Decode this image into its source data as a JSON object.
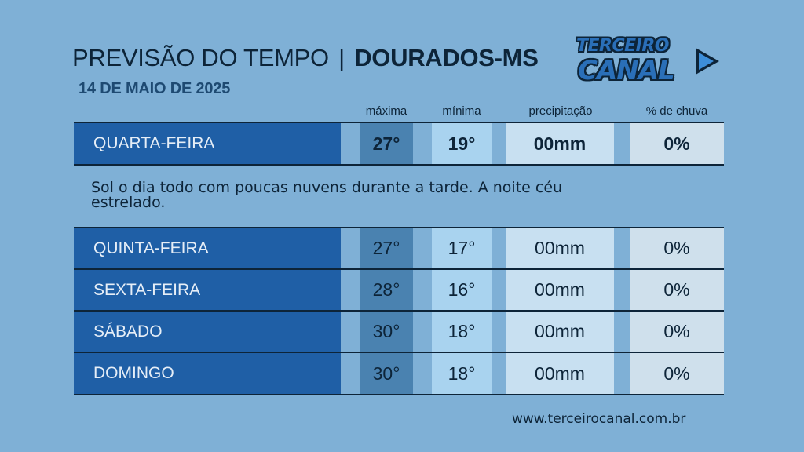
{
  "header": {
    "title_prefix": "PREVISÃO DO TEMPO",
    "separator": "|",
    "city": "DOURADOS-MS",
    "date": "14 DE MAIO DE 2025"
  },
  "logo": {
    "line1": "TERCEIRO",
    "line2": "CANAL",
    "icon": "play-icon"
  },
  "columns": {
    "max": "máxima",
    "min": "mínima",
    "precip": "precipitação",
    "rain_chance": "% de chuva"
  },
  "today": {
    "day": "QUARTA-FEIRA",
    "max": "27°",
    "min": "19°",
    "precip": "00mm",
    "rain_chance": "0%",
    "description": "Sol o dia todo com poucas nuvens durante a tarde. A noite céu estrelado."
  },
  "forecast": [
    {
      "day": "QUINTA-FEIRA",
      "max": "27°",
      "min": "17°",
      "precip": "00mm",
      "rain_chance": "0%"
    },
    {
      "day": "SEXTA-FEIRA",
      "max": "28°",
      "min": "16°",
      "precip": "00mm",
      "rain_chance": "0%"
    },
    {
      "day": "SÁBADO",
      "max": "30°",
      "min": "18°",
      "precip": "00mm",
      "rain_chance": "0%"
    },
    {
      "day": "DOMINGO",
      "max": "30°",
      "min": "18°",
      "precip": "00mm",
      "rain_chance": "0%"
    }
  ],
  "footer": {
    "website": "www.terceirocanal.com.br"
  },
  "colors": {
    "background": "#7fb0d6",
    "day_cell": "#1f5fa6",
    "max_cell": "#4a82b0",
    "min_cell": "#a9d3ef",
    "text": "#0d2438"
  }
}
